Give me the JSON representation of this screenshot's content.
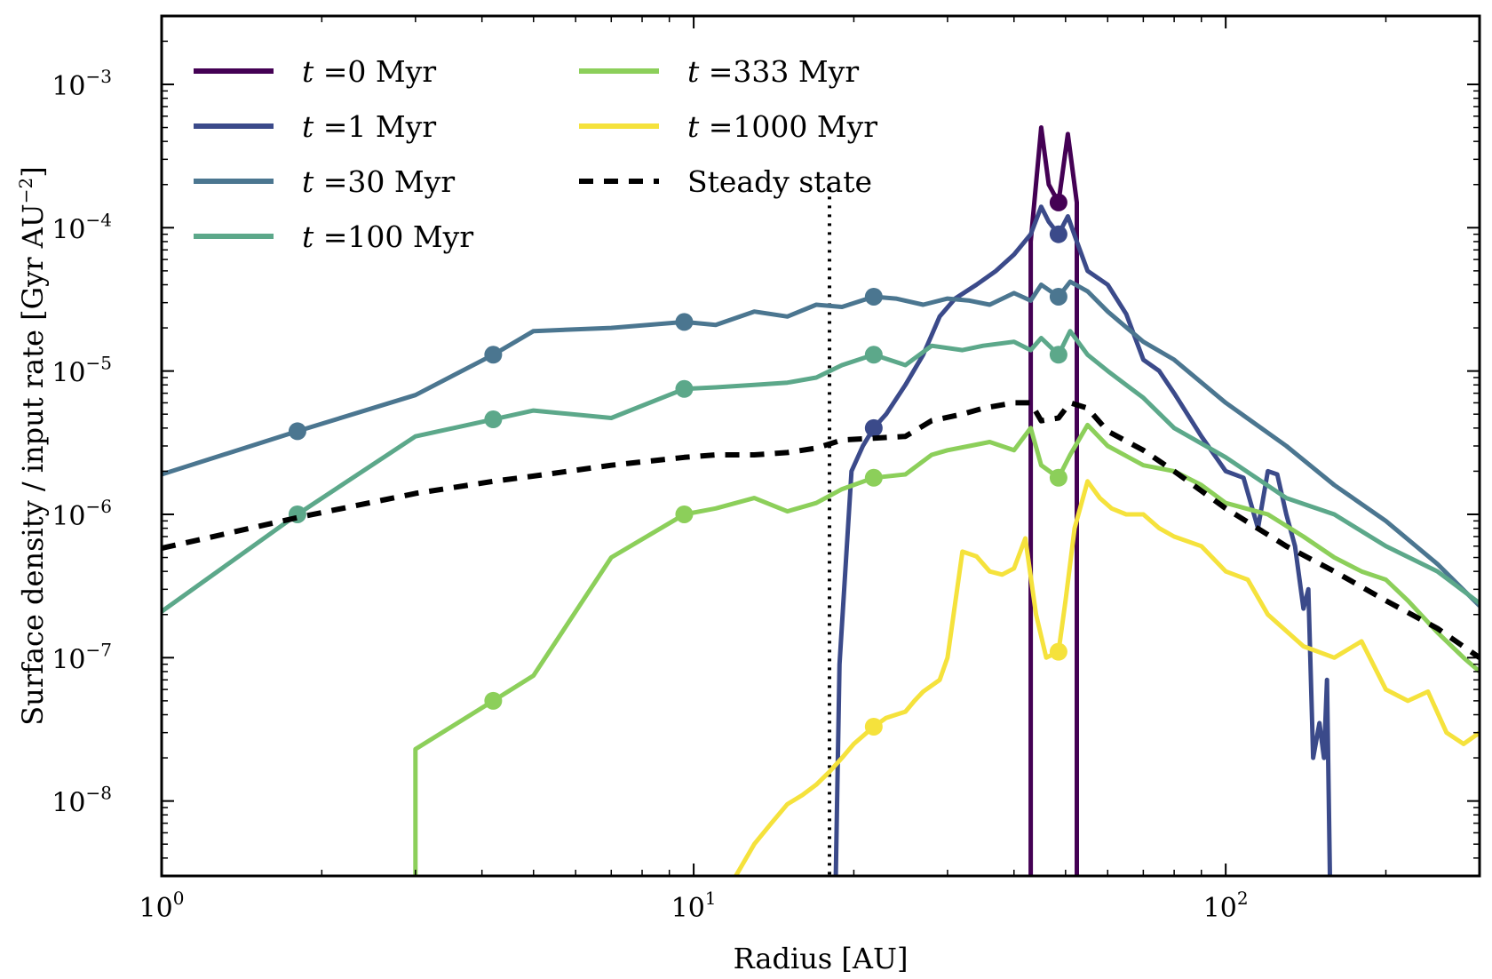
{
  "chart_data": {
    "type": "line",
    "xlabel": "Radius [AU]",
    "ylabel": "Surface density / input rate [Gyr AU",
    "ylabel_sup": "−2",
    "ylabel_end": "]",
    "xscale": "log",
    "yscale": "log",
    "xlim": [
      1,
      300
    ],
    "ylim": [
      3e-09,
      0.003
    ],
    "x_ticks": [
      {
        "value": 1,
        "base": "10",
        "exp": "0"
      },
      {
        "value": 10,
        "base": "10",
        "exp": "1"
      },
      {
        "value": 100,
        "base": "10",
        "exp": "2"
      }
    ],
    "y_ticks": [
      {
        "value": 0.001,
        "base": "10",
        "exp": "−3"
      },
      {
        "value": 0.0001,
        "base": "10",
        "exp": "−4"
      },
      {
        "value": 1e-05,
        "base": "10",
        "exp": "−5"
      },
      {
        "value": 1e-06,
        "base": "10",
        "exp": "−6"
      },
      {
        "value": 1e-07,
        "base": "10",
        "exp": "−7"
      },
      {
        "value": 1e-08,
        "base": "10",
        "exp": "−8"
      }
    ],
    "legend_position": "top-left",
    "vline": {
      "x": 18,
      "style": "dotted",
      "color": "#000000"
    },
    "series": [
      {
        "name_prefix": "t",
        "name_eq": " =",
        "name_value": "0 Myr",
        "color": "#440154",
        "x": [
          43,
          43,
          45,
          46.5,
          48.5,
          50.5,
          52.5,
          52.5
        ],
        "y": [
          3e-09,
          8e-05,
          0.0005,
          0.0002,
          0.00015,
          0.00045,
          0.00015,
          3e-09
        ],
        "markers": [
          {
            "x": 48.5,
            "y": 0.00015
          }
        ]
      },
      {
        "name_prefix": "t",
        "name_eq": " =",
        "name_value": "1 Myr",
        "color": "#3b4a8a",
        "x": [
          18.5,
          18.8,
          19.8,
          20.8,
          21.8,
          23,
          25,
          27,
          29,
          31,
          34,
          37,
          40,
          43,
          45,
          46.5,
          48.5,
          50.5,
          52.5,
          55,
          60,
          65,
          70,
          75,
          80,
          90,
          100,
          108,
          115,
          120,
          125,
          130,
          135,
          140,
          143,
          146,
          150,
          153,
          155,
          157
        ],
        "y": [
          3e-09,
          9e-08,
          2e-06,
          3e-06,
          4e-06,
          5e-06,
          8e-06,
          1.3e-05,
          2.4e-05,
          3.2e-05,
          4e-05,
          5e-05,
          6.5e-05,
          9e-05,
          0.00014,
          0.00011,
          9e-05,
          0.00012,
          8e-05,
          5e-05,
          4e-05,
          2.5e-05,
          1.2e-05,
          1e-05,
          7e-06,
          3.5e-06,
          2e-06,
          1.8e-06,
          8e-07,
          2e-06,
          1.9e-06,
          1e-06,
          6e-07,
          2.2e-07,
          3e-07,
          2e-08,
          3.5e-08,
          2e-08,
          7e-08,
          3e-09
        ],
        "markers": [
          {
            "x": 21.8,
            "y": 4e-06
          },
          {
            "x": 48.5,
            "y": 9e-05
          }
        ]
      },
      {
        "name_prefix": "t",
        "name_eq": " =",
        "name_value": "30 Myr",
        "color": "#4b7690",
        "x": [
          1,
          1.8,
          3,
          4.2,
          5,
          7,
          9.6,
          11,
          13,
          15,
          17,
          19,
          21.8,
          24,
          27,
          30,
          33,
          36,
          40,
          43,
          45,
          48.5,
          51,
          55,
          60,
          70,
          80,
          100,
          130,
          160,
          200,
          250,
          300
        ],
        "y": [
          1.9e-06,
          3.8e-06,
          6.8e-06,
          1.3e-05,
          1.9e-05,
          2e-05,
          2.2e-05,
          2.1e-05,
          2.6e-05,
          2.4e-05,
          2.9e-05,
          2.8e-05,
          3.3e-05,
          3.2e-05,
          2.9e-05,
          3.2e-05,
          3.1e-05,
          2.9e-05,
          3.5e-05,
          3.1e-05,
          4e-05,
          3.3e-05,
          4.2e-05,
          3.6e-05,
          2.6e-05,
          1.6e-05,
          1.2e-05,
          6e-06,
          3e-06,
          1.6e-06,
          9e-07,
          4.5e-07,
          2.3e-07
        ],
        "markers": [
          {
            "x": 1.8,
            "y": 3.8e-06
          },
          {
            "x": 4.2,
            "y": 1.3e-05
          },
          {
            "x": 9.6,
            "y": 2.2e-05
          },
          {
            "x": 21.8,
            "y": 3.3e-05
          },
          {
            "x": 48.5,
            "y": 3.3e-05
          }
        ]
      },
      {
        "name_prefix": "t",
        "name_eq": " =",
        "name_value": "100 Myr",
        "color": "#5ca88a",
        "x": [
          1,
          1.8,
          3,
          4.2,
          5,
          7,
          9.6,
          11,
          13,
          15,
          17,
          19,
          21.8,
          25,
          28,
          32,
          35,
          40,
          43,
          45,
          48.5,
          51,
          55,
          60,
          70,
          80,
          100,
          130,
          160,
          200,
          250,
          300
        ],
        "y": [
          2.1e-07,
          1e-06,
          3.5e-06,
          4.6e-06,
          5.3e-06,
          4.7e-06,
          7.5e-06,
          7.7e-06,
          8e-06,
          8.3e-06,
          9e-06,
          1.1e-05,
          1.3e-05,
          1.1e-05,
          1.5e-05,
          1.4e-05,
          1.5e-05,
          1.6e-05,
          1.4e-05,
          1.7e-05,
          1.3e-05,
          1.9e-05,
          1.3e-05,
          1e-05,
          6.5e-06,
          4e-06,
          2.5e-06,
          1.3e-06,
          1e-06,
          6e-07,
          4e-07,
          2.4e-07
        ],
        "markers": [
          {
            "x": 1.8,
            "y": 1e-06
          },
          {
            "x": 4.2,
            "y": 4.6e-06
          },
          {
            "x": 9.6,
            "y": 7.5e-06
          },
          {
            "x": 21.8,
            "y": 1.3e-05
          },
          {
            "x": 48.5,
            "y": 1.3e-05
          }
        ]
      },
      {
        "name_prefix": "t",
        "name_eq": " =",
        "name_value": "333 Myr",
        "color": "#8ccf5a",
        "x": [
          3,
          3,
          4.2,
          5,
          7,
          9.6,
          11,
          13,
          15,
          17,
          19,
          21.8,
          25,
          28,
          30,
          33,
          36,
          40,
          43,
          45,
          48.5,
          51,
          55,
          60,
          70,
          80,
          90,
          100,
          120,
          140,
          160,
          180,
          200,
          220,
          250,
          280,
          300
        ],
        "y": [
          3e-09,
          2.3e-08,
          5e-08,
          7.5e-08,
          5e-07,
          1e-06,
          1.1e-06,
          1.3e-06,
          1.05e-06,
          1.2e-06,
          1.5e-06,
          1.8e-06,
          1.9e-06,
          2.6e-06,
          2.8e-06,
          3e-06,
          3.2e-06,
          2.8e-06,
          4e-06,
          2.2e-06,
          1.8e-06,
          2.6e-06,
          4.2e-06,
          3e-06,
          2.2e-06,
          2e-06,
          1.6e-06,
          1.2e-06,
          1e-06,
          7e-07,
          5e-07,
          4e-07,
          3.5e-07,
          2.5e-07,
          1.5e-07,
          1e-07,
          8e-08
        ],
        "markers": [
          {
            "x": 4.2,
            "y": 5e-08
          },
          {
            "x": 9.6,
            "y": 1e-06
          },
          {
            "x": 21.8,
            "y": 1.8e-06
          },
          {
            "x": 48.5,
            "y": 1.8e-06
          }
        ]
      },
      {
        "name_prefix": "t",
        "name_eq": " =",
        "name_value": "1000 Myr",
        "color": "#f5e23c",
        "x": [
          12,
          13,
          14,
          15,
          16,
          17,
          18,
          19,
          20,
          21.8,
          23,
          25,
          26,
          27,
          29,
          30,
          32,
          34,
          36,
          38,
          40,
          42,
          44,
          46,
          48.5,
          50,
          52,
          55,
          58,
          61,
          65,
          70,
          75,
          80,
          90,
          100,
          110,
          120,
          140,
          160,
          180,
          200,
          220,
          240,
          260,
          280,
          300
        ],
        "y": [
          3e-09,
          5e-09,
          7e-09,
          9.5e-09,
          1.1e-08,
          1.3e-08,
          1.6e-08,
          2e-08,
          2.5e-08,
          3.3e-08,
          3.8e-08,
          4.2e-08,
          5e-08,
          5.8e-08,
          7e-08,
          1e-07,
          5.5e-07,
          5.1e-07,
          4e-07,
          3.8e-07,
          4.2e-07,
          6.8e-07,
          2e-07,
          1e-07,
          1.1e-07,
          2.5e-07,
          8e-07,
          1.7e-06,
          1.3e-06,
          1.1e-06,
          1e-06,
          1e-06,
          8e-07,
          7e-07,
          6e-07,
          4e-07,
          3.5e-07,
          2e-07,
          1.2e-07,
          1e-07,
          1.3e-07,
          6e-08,
          5e-08,
          5.8e-08,
          3e-08,
          2.5e-08,
          3e-08
        ],
        "markers": [
          {
            "x": 21.8,
            "y": 3.3e-08
          },
          {
            "x": 48.5,
            "y": 1.1e-07
          }
        ]
      },
      {
        "name_prefix": "",
        "name_eq": "",
        "name_value": "Steady state",
        "color": "#000000",
        "dashed": true,
        "x": [
          1,
          1.8,
          3,
          4.2,
          5,
          7,
          9.6,
          11,
          13,
          15,
          17,
          19,
          21.8,
          25,
          28,
          32,
          35,
          40,
          43,
          45,
          48.5,
          51,
          55,
          60,
          70,
          80,
          100,
          130,
          160,
          200,
          250,
          300
        ],
        "y": [
          5.8e-07,
          9.5e-07,
          1.4e-06,
          1.7e-06,
          1.85e-06,
          2.2e-06,
          2.5e-06,
          2.6e-06,
          2.6e-06,
          2.7e-06,
          2.9e-06,
          3.3e-06,
          3.4e-06,
          3.5e-06,
          4.5e-06,
          5e-06,
          5.5e-06,
          6e-06,
          6e-06,
          4.5e-06,
          4.7e-06,
          6e-06,
          5.5e-06,
          3.8e-06,
          2.8e-06,
          2e-06,
          1.1e-06,
          6e-07,
          4e-07,
          2.5e-07,
          1.6e-07,
          1e-07
        ],
        "markers": []
      }
    ]
  }
}
